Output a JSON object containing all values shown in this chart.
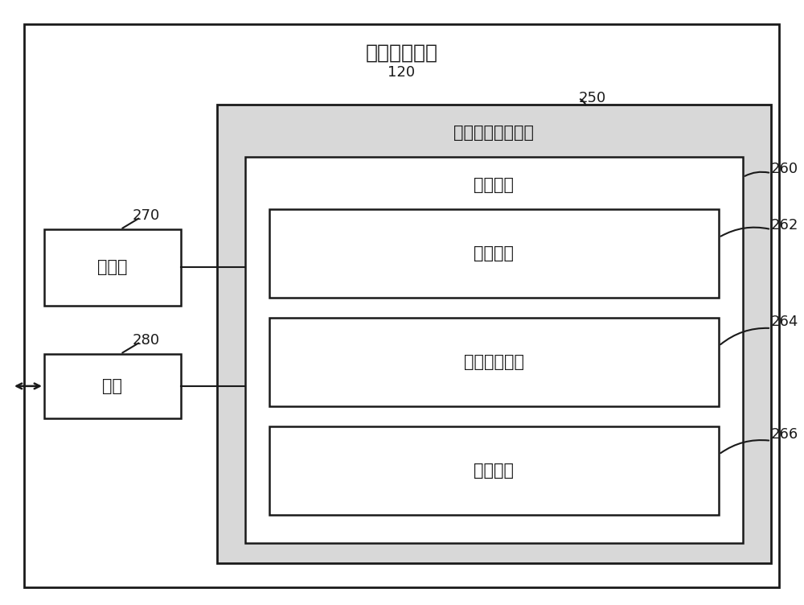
{
  "title": "引用解释设备",
  "title_num": "120",
  "storage_label": "机器可读存储介质",
  "storage_num": "250",
  "interpret_label": "解释指令",
  "interpret_num": "260",
  "fetch_label": "提取指令",
  "fetch_num": "262",
  "segment_label": "片段生成指令",
  "segment_num": "264",
  "eval_label": "评价指令",
  "eval_num": "266",
  "processor_label": "处理器",
  "processor_num": "270",
  "interface_label": "接口",
  "interface_num": "280",
  "bg_color": "#ffffff",
  "box_edge": "#1a1a1a",
  "storage_fill": "#d8d8d8",
  "interpret_fill": "#c8c8c8",
  "white_fill": "#ffffff",
  "outer_lw": 2.0,
  "inner_lw": 1.8,
  "font_size_title": 18,
  "font_size_label": 15,
  "font_size_num": 13
}
